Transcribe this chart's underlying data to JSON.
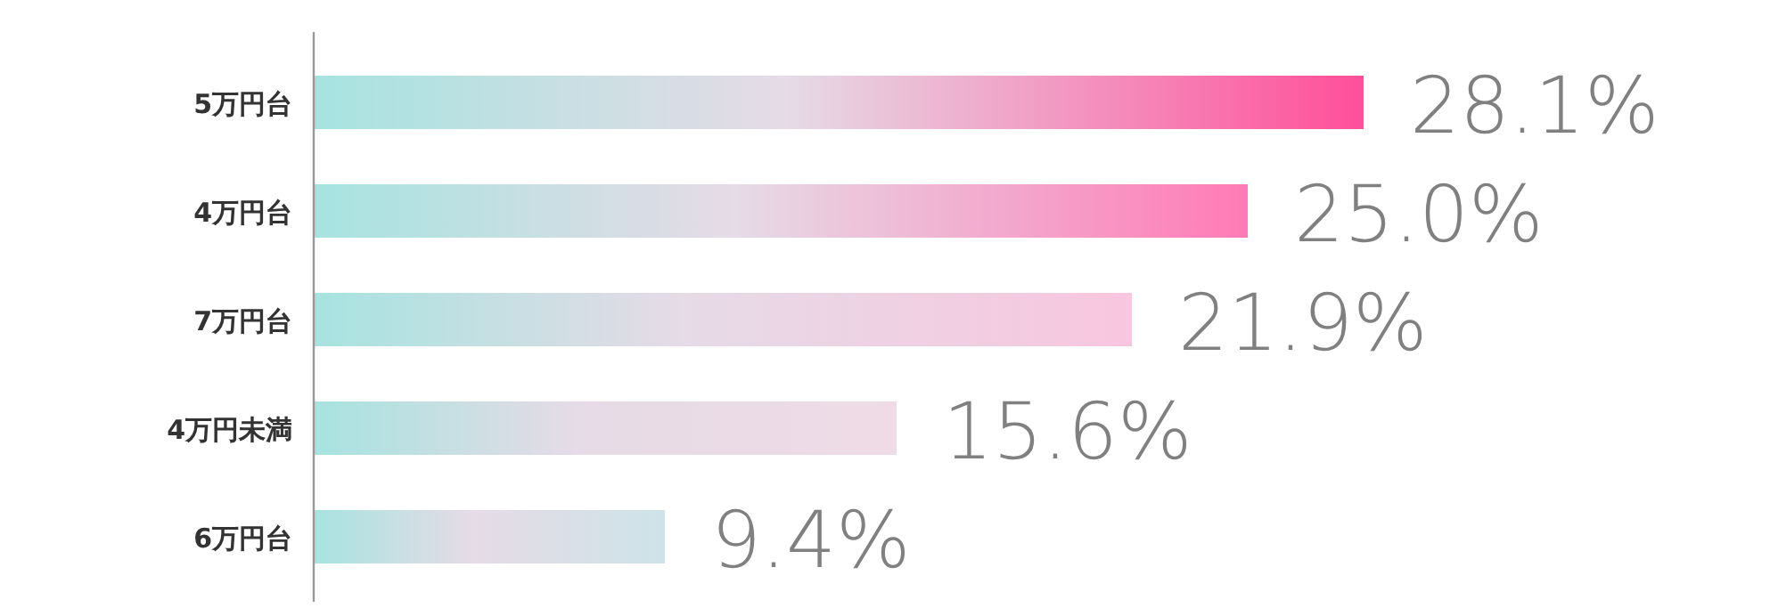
{
  "chart_data": {
    "type": "bar",
    "orientation": "horizontal",
    "categories": [
      "5万円台",
      "4万円台",
      "7万円台",
      "4万円未満",
      "6万円台"
    ],
    "values": [
      28.1,
      25.0,
      21.9,
      15.6,
      9.4
    ],
    "value_labels": [
      "28.1%",
      "25.0%",
      "21.9%",
      "15.6%",
      "9.4%"
    ],
    "colors": [
      "#ff4f9a",
      "#ff7ab6",
      "#f8c6de",
      "#efdbe6",
      "#cde3e8"
    ]
  }
}
